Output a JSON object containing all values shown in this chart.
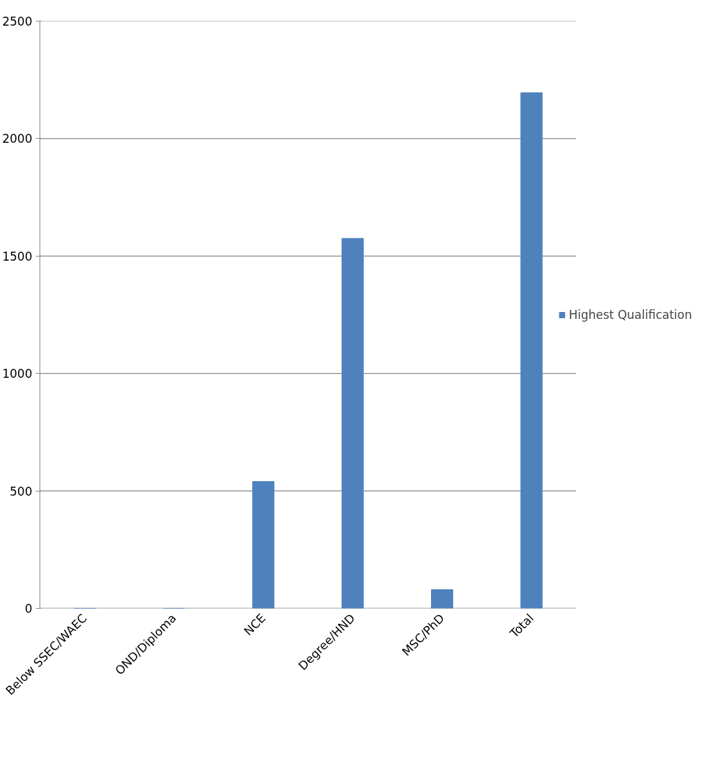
{
  "chart_data": {
    "type": "bar",
    "categories": [
      "Below SSEC/WAEC",
      "OND/Diploma",
      "NCE",
      "Degree/HND",
      "MSC/PhD",
      "Total"
    ],
    "series": [
      {
        "name": "Highest Qualification",
        "color": "#4f81bd",
        "values": [
          0,
          0,
          540,
          1575,
          80,
          2195
        ]
      }
    ],
    "ylim": [
      0,
      2500
    ],
    "yticks": [
      0,
      500,
      1000,
      1500,
      2000,
      2500
    ],
    "grid": "y",
    "legend": "right"
  }
}
